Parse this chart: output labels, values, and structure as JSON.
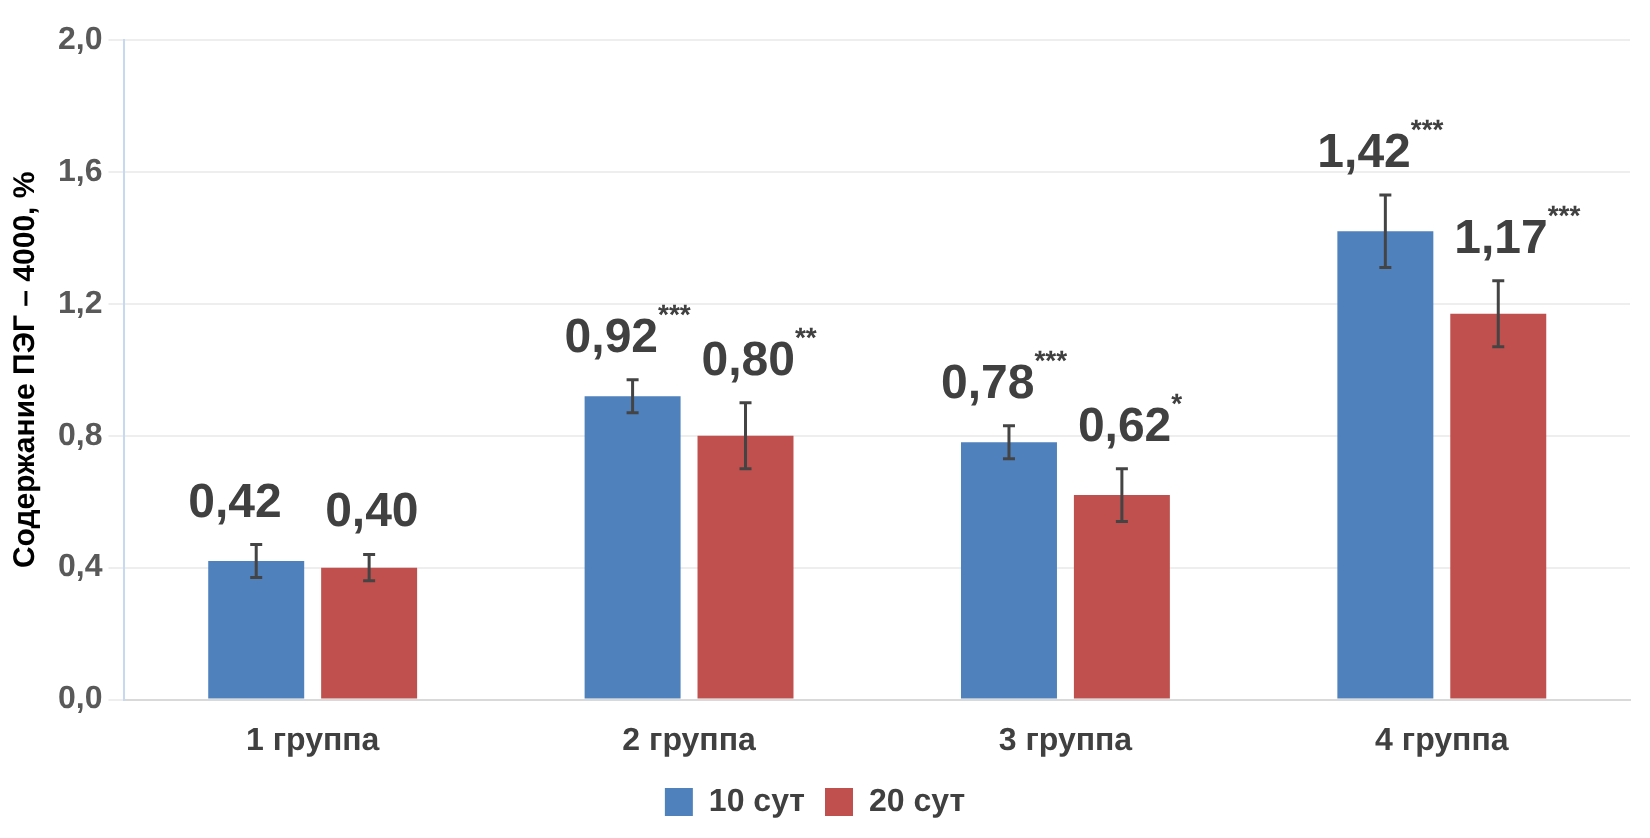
{
  "chart_data": {
    "type": "bar",
    "ylabel": "Содержание ПЭГ – 4000, %",
    "categories": [
      "1 группа",
      "2 группа",
      "3 группа",
      "4 группа"
    ],
    "series": [
      {
        "name": "10 сут",
        "color": "#4f81bd",
        "values": [
          0.42,
          0.92,
          0.78,
          1.42
        ],
        "errors": [
          0.05,
          0.05,
          0.05,
          0.11
        ],
        "value_labels": [
          "0,42",
          "0,92$^{***}$",
          "0,78$^{***}$",
          "1,42$^{***}$"
        ]
      },
      {
        "name": "20 сут",
        "color": "#c0504d",
        "values": [
          0.4,
          0.8,
          0.62,
          1.17
        ],
        "errors": [
          0.04,
          0.1,
          0.08,
          0.1
        ],
        "value_labels": [
          "0,40",
          "0,80$^{**}$",
          "0,62$^{*}$",
          "1,17$^{***}$"
        ]
      }
    ],
    "ylim": [
      0,
      2
    ],
    "yticks": [
      {
        "value": 0,
        "label": "0,0"
      },
      {
        "value": 0.4,
        "label": "0,4"
      },
      {
        "value": 0.8,
        "label": "0,8"
      },
      {
        "value": 1.2,
        "label": "1,2"
      },
      {
        "value": 1.6,
        "label": "1,6"
      },
      {
        "value": 2,
        "label": "2,0"
      }
    ],
    "grid": "y",
    "legend": "bottom"
  }
}
